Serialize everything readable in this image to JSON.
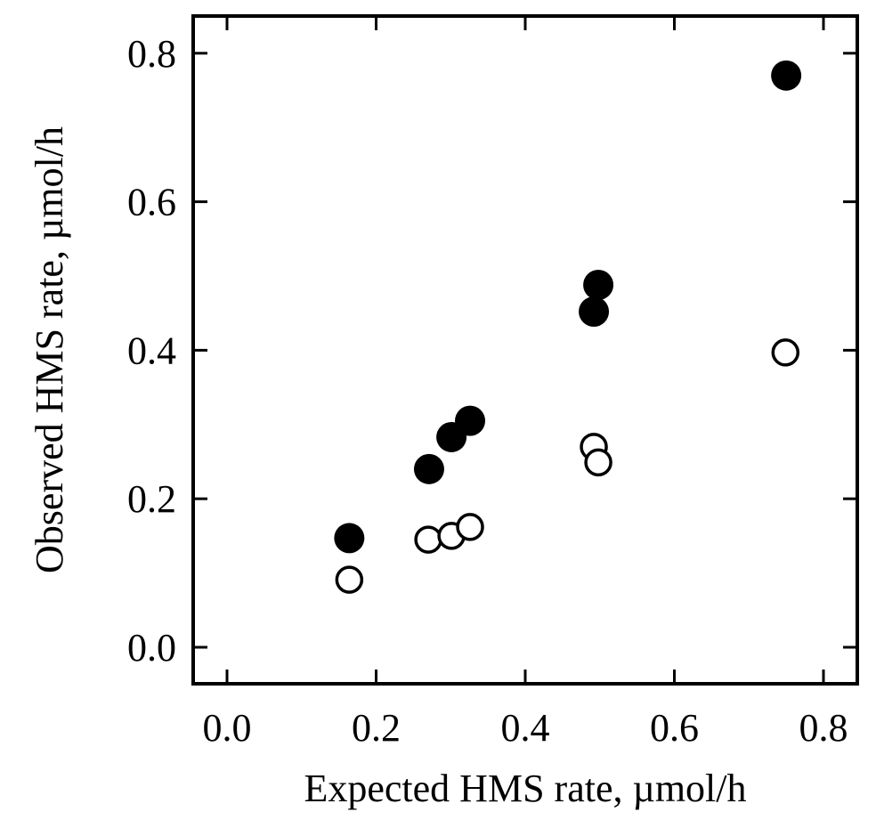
{
  "chart_data": {
    "type": "scatter",
    "title": "",
    "xlabel": "Expected HMS rate, µmol/h",
    "ylabel": "Observed HMS rate, µmol/h",
    "xlim": [
      -0.045,
      0.845
    ],
    "ylim": [
      -0.05,
      0.85
    ],
    "xticks": [
      0.0,
      0.2,
      0.4,
      0.6,
      0.8
    ],
    "yticks": [
      0.0,
      0.2,
      0.4,
      0.6,
      0.8
    ],
    "xtick_labels": [
      "0.0",
      "0.2",
      "0.4",
      "0.6",
      "0.8"
    ],
    "ytick_labels": [
      "0.0",
      "0.2",
      "0.4",
      "0.6",
      "0.8"
    ],
    "grid": false,
    "legend": null,
    "series": [
      {
        "name": "filled circles",
        "marker": "filled-circle",
        "color": "#000000",
        "points": [
          {
            "x": 0.164,
            "y": 0.147
          },
          {
            "x": 0.271,
            "y": 0.24
          },
          {
            "x": 0.301,
            "y": 0.283
          },
          {
            "x": 0.326,
            "y": 0.305
          },
          {
            "x": 0.492,
            "y": 0.452
          },
          {
            "x": 0.498,
            "y": 0.488
          },
          {
            "x": 0.75,
            "y": 0.77
          }
        ]
      },
      {
        "name": "open circles",
        "marker": "open-circle",
        "color": "#000000",
        "points": [
          {
            "x": 0.164,
            "y": 0.091
          },
          {
            "x": 0.27,
            "y": 0.145
          },
          {
            "x": 0.301,
            "y": 0.15
          },
          {
            "x": 0.326,
            "y": 0.162
          },
          {
            "x": 0.492,
            "y": 0.27
          },
          {
            "x": 0.498,
            "y": 0.249
          },
          {
            "x": 0.749,
            "y": 0.397
          }
        ]
      }
    ]
  }
}
